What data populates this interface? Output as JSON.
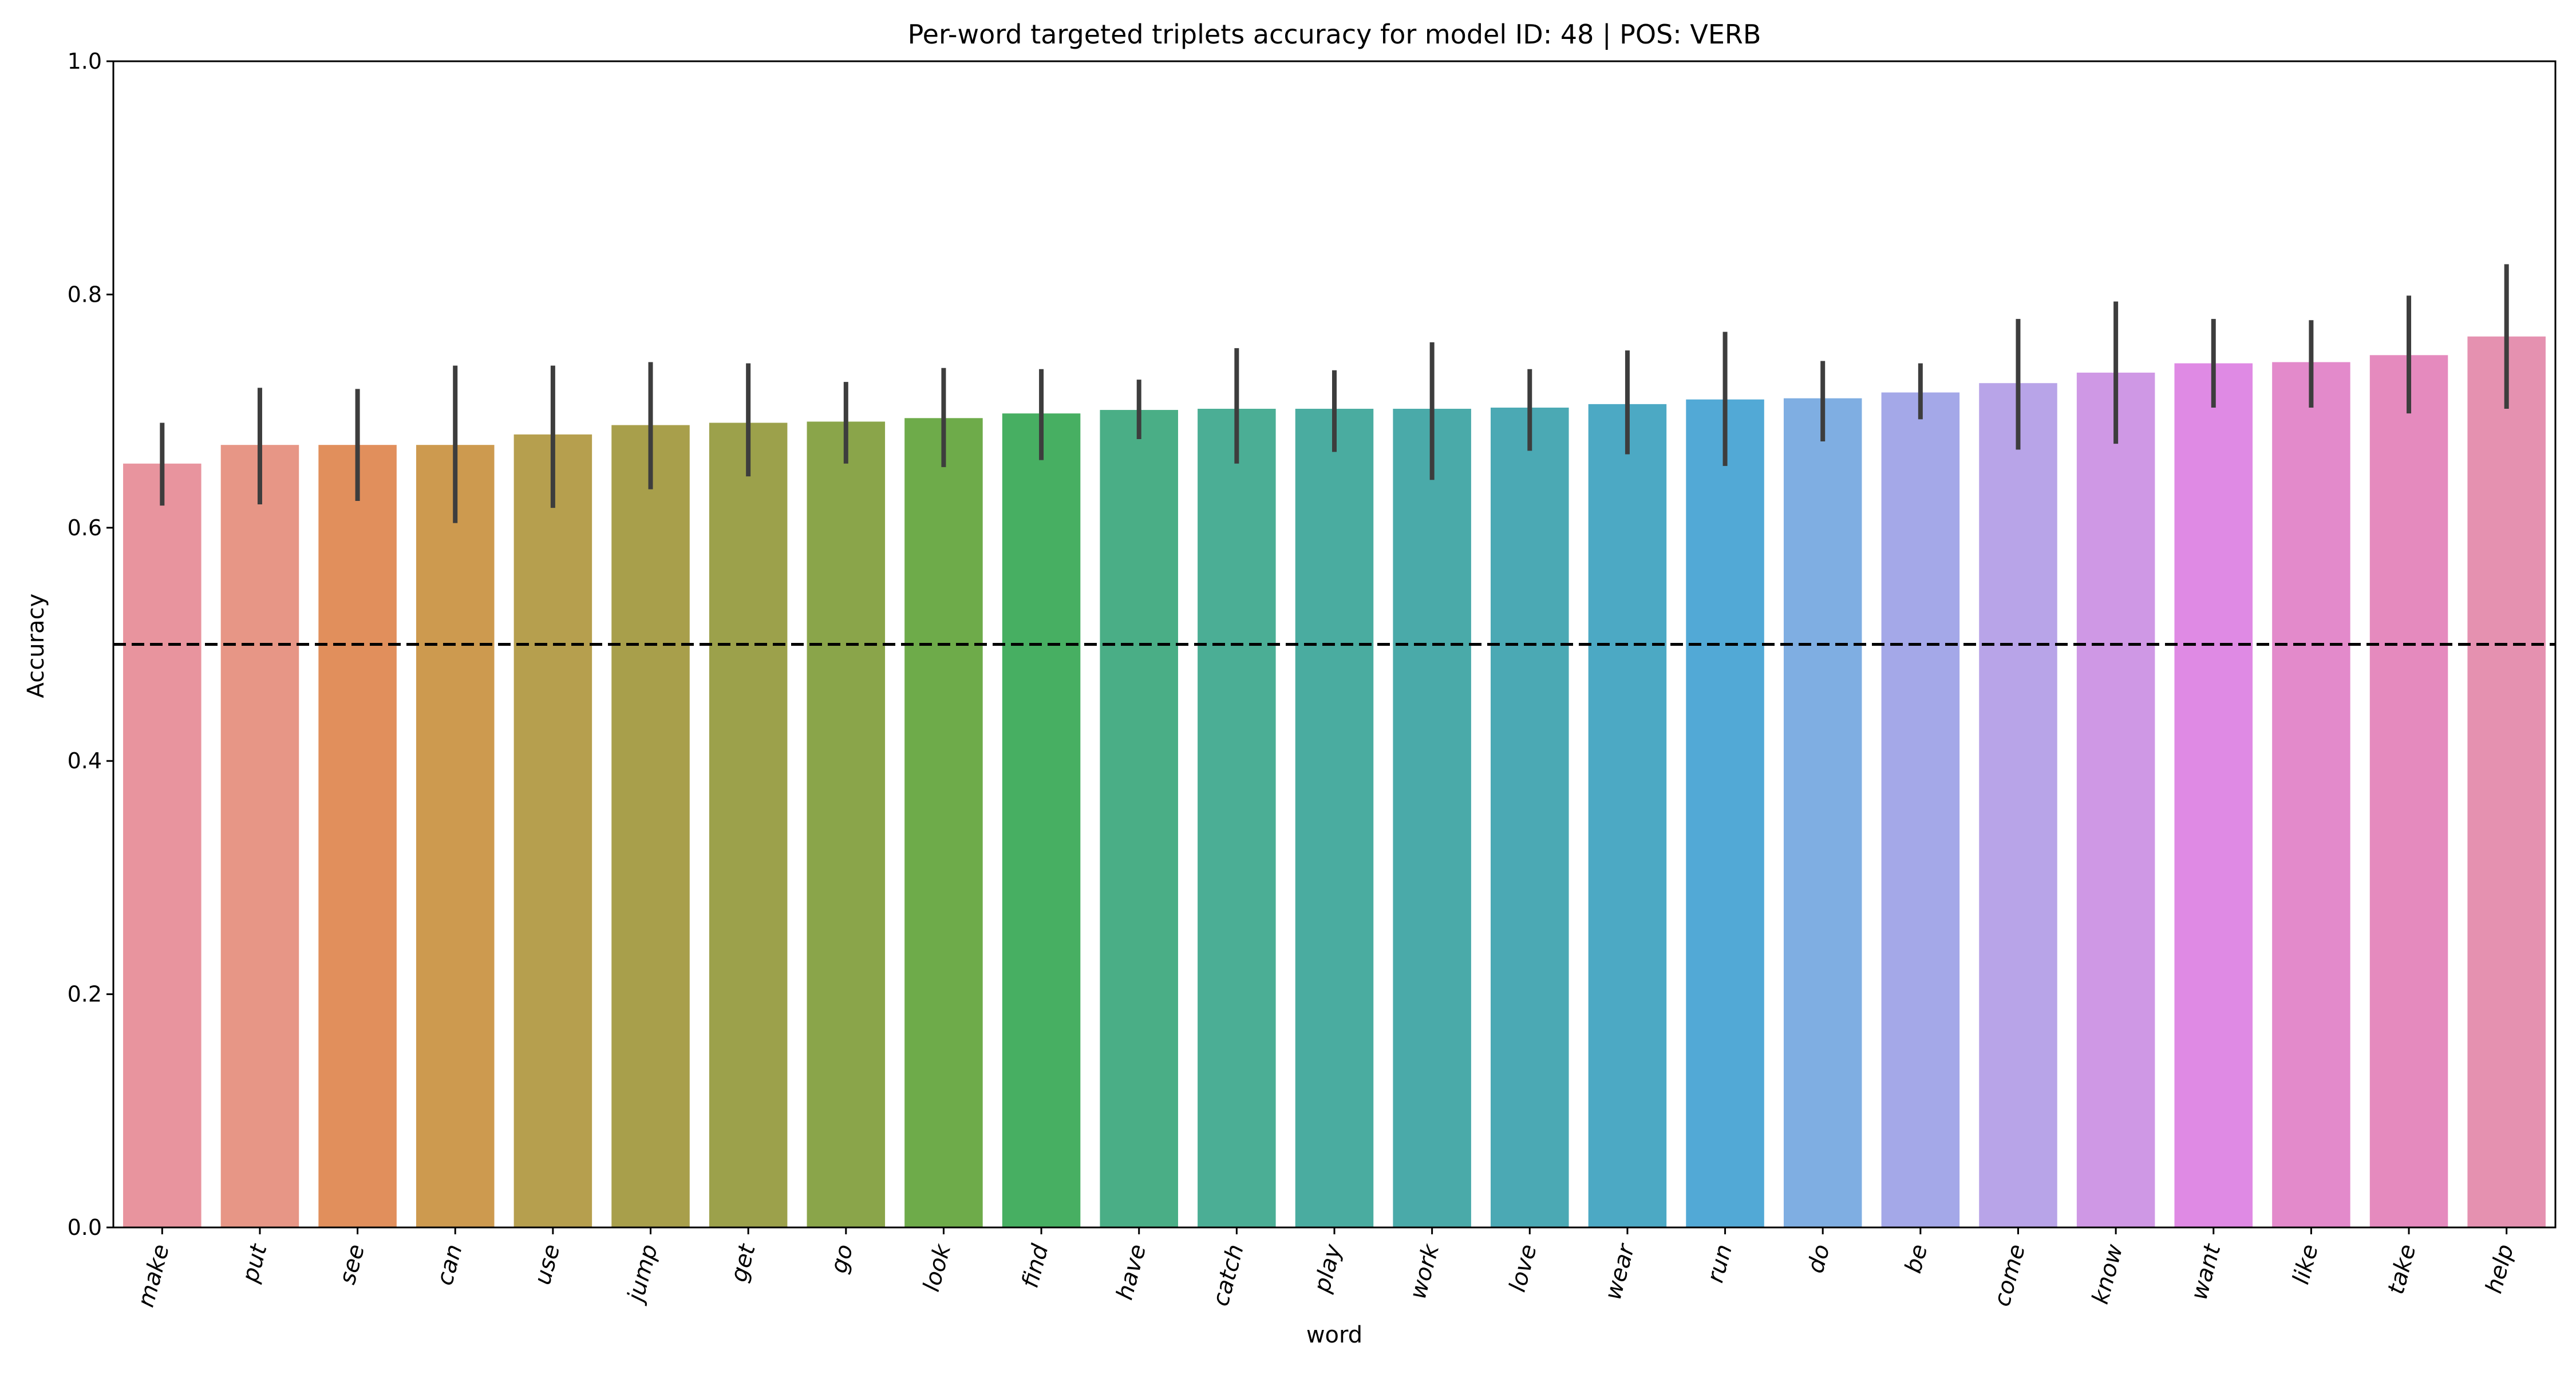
{
  "chart_data": {
    "type": "bar",
    "title": "Per-word targeted triplets accuracy for model ID: 48 | POS: VERB",
    "xlabel": "word",
    "ylabel": "Accuracy",
    "ylim": [
      0.0,
      1.0
    ],
    "yticks": [
      "0.0",
      "0.2",
      "0.4",
      "0.6",
      "0.8",
      "1.0"
    ],
    "reference_line": 0.5,
    "categories": [
      "make",
      "put",
      "see",
      "can",
      "use",
      "jump",
      "get",
      "go",
      "look",
      "find",
      "have",
      "catch",
      "play",
      "work",
      "love",
      "wear",
      "run",
      "do",
      "be",
      "come",
      "know",
      "want",
      "like",
      "take",
      "help"
    ],
    "values": [
      0.655,
      0.671,
      0.671,
      0.671,
      0.68,
      0.688,
      0.69,
      0.691,
      0.694,
      0.698,
      0.701,
      0.702,
      0.702,
      0.702,
      0.703,
      0.706,
      0.71,
      0.711,
      0.716,
      0.724,
      0.733,
      0.741,
      0.742,
      0.748,
      0.764
    ],
    "error_low": [
      0.619,
      0.62,
      0.623,
      0.604,
      0.617,
      0.633,
      0.644,
      0.655,
      0.652,
      0.658,
      0.676,
      0.655,
      0.665,
      0.641,
      0.666,
      0.663,
      0.653,
      0.674,
      0.693,
      0.667,
      0.672,
      0.703,
      0.703,
      0.698,
      0.702
    ],
    "error_high": [
      0.69,
      0.72,
      0.719,
      0.739,
      0.739,
      0.742,
      0.741,
      0.725,
      0.737,
      0.736,
      0.727,
      0.754,
      0.735,
      0.759,
      0.736,
      0.752,
      0.768,
      0.743,
      0.741,
      0.779,
      0.794,
      0.779,
      0.778,
      0.799,
      0.826
    ],
    "colors": [
      "#E8949E",
      "#E79686",
      "#E18F5C",
      "#CD9A4F",
      "#B69F4E",
      "#A89F4B",
      "#9CA14B",
      "#8AA54A",
      "#6EAB4A",
      "#47AF62",
      "#4AAE86",
      "#4BAE95",
      "#4AACA0",
      "#4AAAA9",
      "#4BA9B4",
      "#4CA9C4",
      "#52A9D6",
      "#7FAEE2",
      "#A4A8E8",
      "#B8A4E8",
      "#CF98E5",
      "#DF8AE4",
      "#E38ACB",
      "#E58ABE",
      "#E591B0"
    ]
  }
}
